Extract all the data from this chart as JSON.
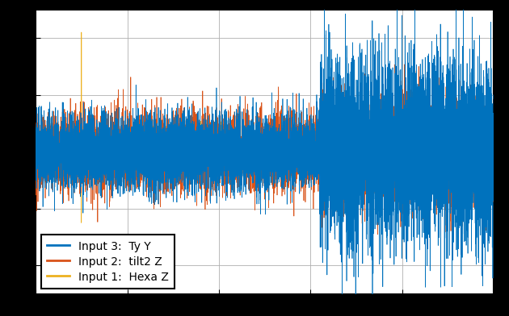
{
  "title": "",
  "xlabel": "",
  "ylabel": "",
  "legend_labels": [
    "Input 1:  Hexa Z",
    "Input 2:  tilt2 Z",
    "Input 3:  Ty Y"
  ],
  "line_colors": [
    "#0072BD",
    "#D95319",
    "#EDB120"
  ],
  "background_color": "#ffffff",
  "n_points": 10000,
  "xlim": [
    0,
    10000
  ],
  "ylim": [
    -5,
    5
  ],
  "grid": true,
  "legend_loc": "lower left",
  "legend_fontsize": 10,
  "fig_facecolor": "#000000",
  "axes_facecolor": "#ffffff",
  "spine_color": "#000000",
  "grid_color": "#b0b0b0",
  "tick_labelsize": 9
}
